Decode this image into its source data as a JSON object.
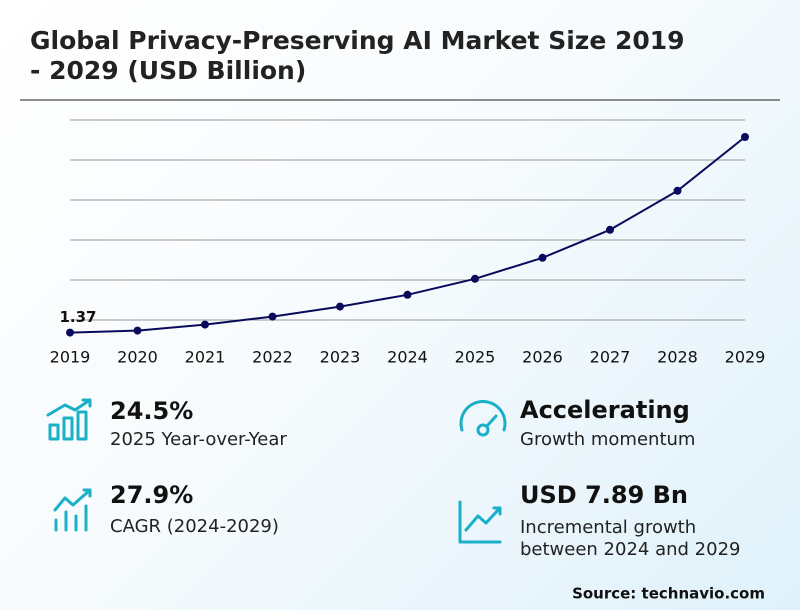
{
  "chart_data": {
    "type": "line",
    "title": [
      "Global Privacy-Preserving AI Market Size 2019",
      "- 2029 (USD Billion)"
    ],
    "categories": [
      "2019",
      "2020",
      "2021",
      "2022",
      "2023",
      "2024",
      "2025",
      "2026",
      "2027",
      "2028",
      "2029"
    ],
    "values": [
      1.37,
      1.47,
      1.77,
      2.17,
      2.67,
      3.26,
      4.06,
      5.11,
      6.51,
      8.46,
      11.15
    ],
    "value_labels": [
      "1.37",
      null,
      null,
      null,
      null,
      null,
      null,
      null,
      null,
      null,
      null
    ],
    "color": "#0a0a5c",
    "ylim": [
      0,
      12
    ],
    "yticks": [
      2,
      4,
      6,
      8,
      10,
      12
    ],
    "grid": true
  },
  "stats": [
    {
      "value": "24.5%",
      "label": [
        "2025 Year-over-Year"
      ]
    },
    {
      "value": "Accelerating",
      "label": [
        "Growth momentum"
      ]
    },
    {
      "value": "27.9%",
      "label": [
        "CAGR (2024-2029)"
      ]
    },
    {
      "value": "USD 7.89 Bn",
      "label": [
        "Incremental growth",
        "between 2024 and 2029"
      ]
    }
  ],
  "source": "Source: technavio.com"
}
